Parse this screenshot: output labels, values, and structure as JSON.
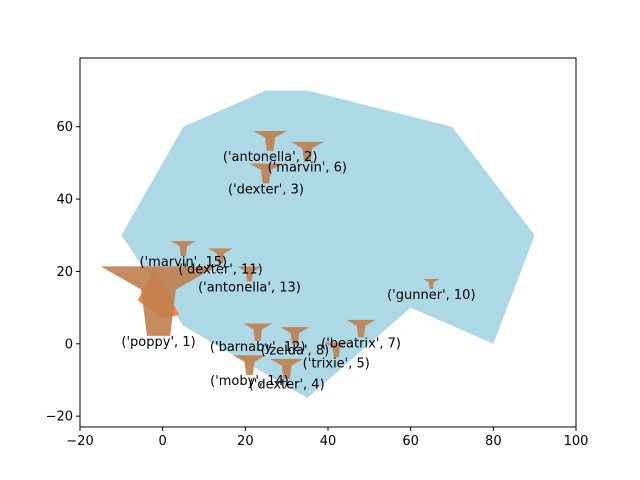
{
  "chart_data": {
    "type": "scatter",
    "title": "",
    "xlabel": "",
    "ylabel": "",
    "xlim": [
      -20,
      100
    ],
    "ylim": [
      -23,
      79
    ],
    "xticks": [
      -20,
      0,
      20,
      40,
      60,
      80,
      100
    ],
    "yticks": [
      -20,
      0,
      20,
      40,
      60
    ],
    "grid": false,
    "colors": {
      "region": "#add8e6",
      "marker": "#c0804f",
      "highlight": "#ff7f3f"
    },
    "region_polygon": [
      [
        -10,
        30
      ],
      [
        5,
        60
      ],
      [
        25,
        70
      ],
      [
        35,
        70
      ],
      [
        70,
        60
      ],
      [
        90,
        30
      ],
      [
        80,
        0
      ],
      [
        60,
        10
      ],
      [
        35,
        -15
      ],
      [
        5,
        5
      ]
    ],
    "highlight_polygon": [
      [
        -6,
        12
      ],
      [
        -2,
        21
      ],
      [
        4,
        8
      ],
      [
        0,
        7
      ]
    ],
    "points": [
      {
        "label": "('poppy', 1)",
        "x": -1,
        "y": 15,
        "size": 14
      },
      {
        "label": "('antonella', 2)",
        "x": 26,
        "y": 57,
        "size": 4
      },
      {
        "label": "('dexter', 3)",
        "x": 25,
        "y": 48,
        "size": 4
      },
      {
        "label": "('dexter', 4)",
        "x": 30,
        "y": -6,
        "size": 4
      },
      {
        "label": "('trixie', 5)",
        "x": 42,
        "y": -1,
        "size": 3
      },
      {
        "label": "('marvin', 6)",
        "x": 35,
        "y": 54,
        "size": 4
      },
      {
        "label": "('beatrix', 7)",
        "x": 48,
        "y": 5,
        "size": 3.5
      },
      {
        "label": "('zelda', 8)",
        "x": 32,
        "y": 3,
        "size": 3.5
      },
      {
        "label": "('gunner', 10)",
        "x": 65,
        "y": 17,
        "size": 2
      },
      {
        "label": "('dexter', 11)",
        "x": 14,
        "y": 25,
        "size": 3
      },
      {
        "label": "('barnaby', 12)",
        "x": 23,
        "y": 4,
        "size": 3.5
      },
      {
        "label": "('antonella', 13)",
        "x": 21,
        "y": 20,
        "size": 3
      },
      {
        "label": "('moby', 14)",
        "x": 21,
        "y": -5,
        "size": 4
      },
      {
        "label": "('marvin', 15)",
        "x": 5,
        "y": 27,
        "size": 3
      }
    ]
  }
}
